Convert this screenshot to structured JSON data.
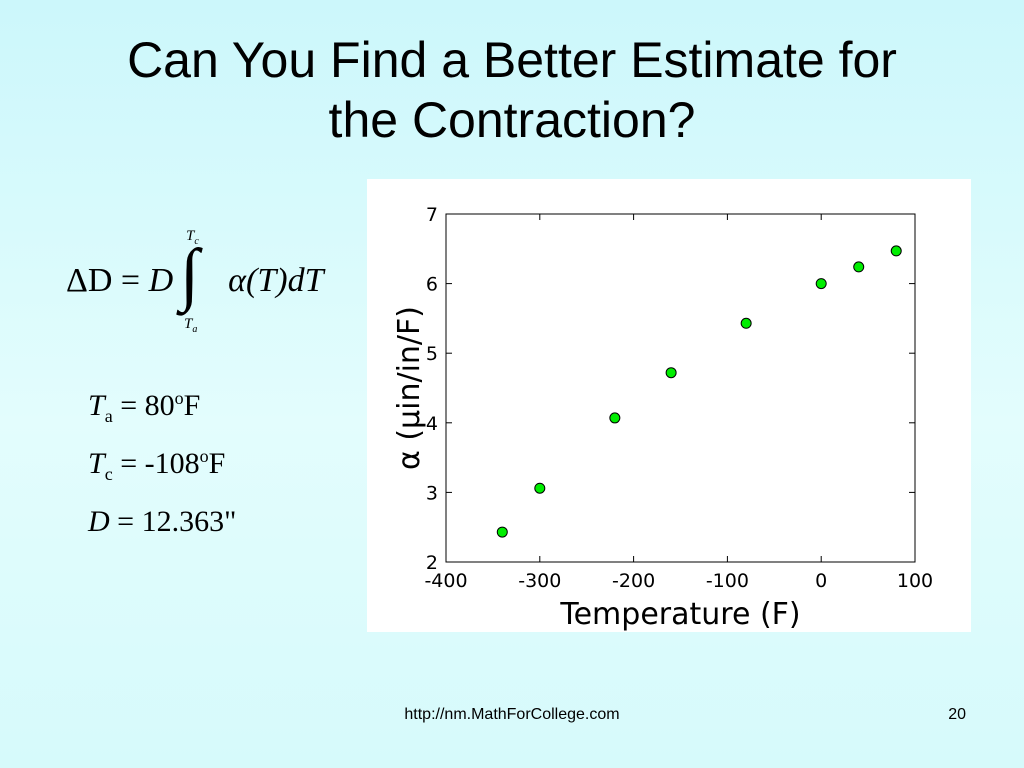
{
  "slide": {
    "title_line1": "Can You Find a Better Estimate for",
    "title_line2": "the Contraction?",
    "footer_url": "http://nm.MathForCollege.com",
    "page_number": "20"
  },
  "formula": {
    "lhs": "ΔD",
    "eq": "=",
    "d": "D",
    "integrand": "α(T)dT",
    "upper_var": "T",
    "upper_sub": "c",
    "lower_var": "T",
    "lower_sub": "a"
  },
  "values": [
    {
      "var": "T",
      "sub": "a",
      "text": " = 80",
      "sup": "o",
      "unit": "F"
    },
    {
      "var": "T",
      "sub": "c",
      "text": " = -108",
      "sup": "o",
      "unit": "F"
    },
    {
      "var": "D",
      "sub": "",
      "text": " = 12.363\"",
      "sup": "",
      "unit": ""
    }
  ],
  "chart_data": {
    "type": "scatter",
    "xlabel": "Temperature (F)",
    "ylabel": "α (μin/in/F)",
    "xlim": [
      -400,
      100
    ],
    "ylim": [
      2,
      7
    ],
    "xticks": [
      -400,
      -300,
      -200,
      -100,
      0,
      100
    ],
    "yticks": [
      2,
      3,
      4,
      5,
      6,
      7
    ],
    "grid": false,
    "marker_color": "#00ee00",
    "marker_edge": "#000000",
    "series": [
      {
        "x": [
          -340,
          -300,
          -220,
          -160,
          -80,
          0,
          40,
          80
        ],
        "y": [
          2.43,
          3.06,
          4.07,
          4.72,
          5.43,
          6.0,
          6.24,
          6.47
        ]
      }
    ]
  }
}
